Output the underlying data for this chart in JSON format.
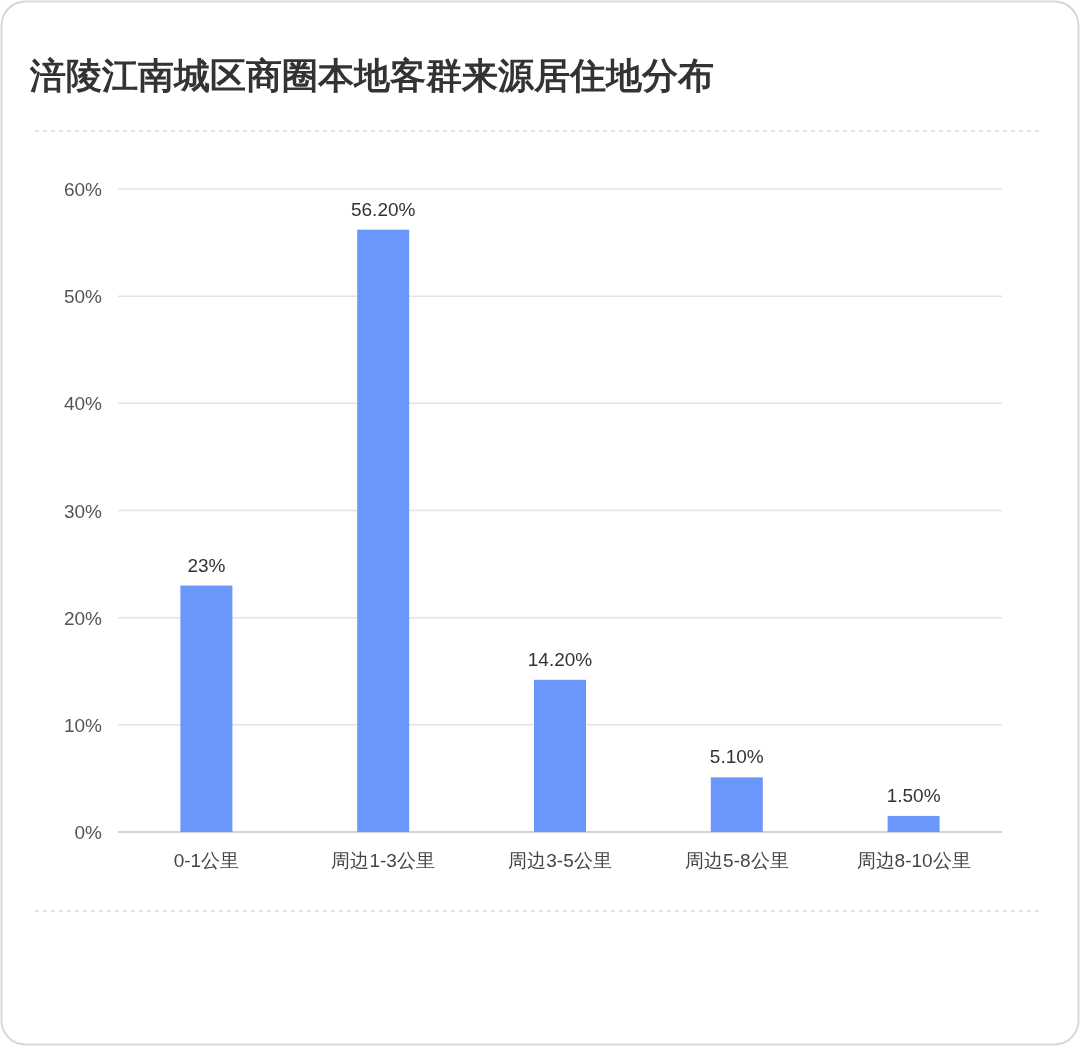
{
  "chart_data": {
    "type": "bar",
    "title": "涪陵江南城区商圈本地客群来源居住地分布",
    "categories": [
      "0-1公里",
      "周边1-3公里",
      "周边3-5公里",
      "周边5-8公里",
      "周边8-10公里"
    ],
    "values": [
      23,
      56.2,
      14.2,
      5.1,
      1.5
    ],
    "value_labels": [
      "23%",
      "56.20%",
      "14.20%",
      "5.10%",
      "1.50%"
    ],
    "color": "#6b97fc",
    "ylim": [
      0,
      60
    ],
    "yticks": [
      {
        "value": 0,
        "label": "0%"
      },
      {
        "value": 10,
        "label": "10%"
      },
      {
        "value": 20,
        "label": "20%"
      },
      {
        "value": 30,
        "label": "30%"
      },
      {
        "value": 40,
        "label": "40%"
      },
      {
        "value": 50,
        "label": "50%"
      },
      {
        "value": 60,
        "label": "60%"
      }
    ],
    "grid": "y"
  }
}
